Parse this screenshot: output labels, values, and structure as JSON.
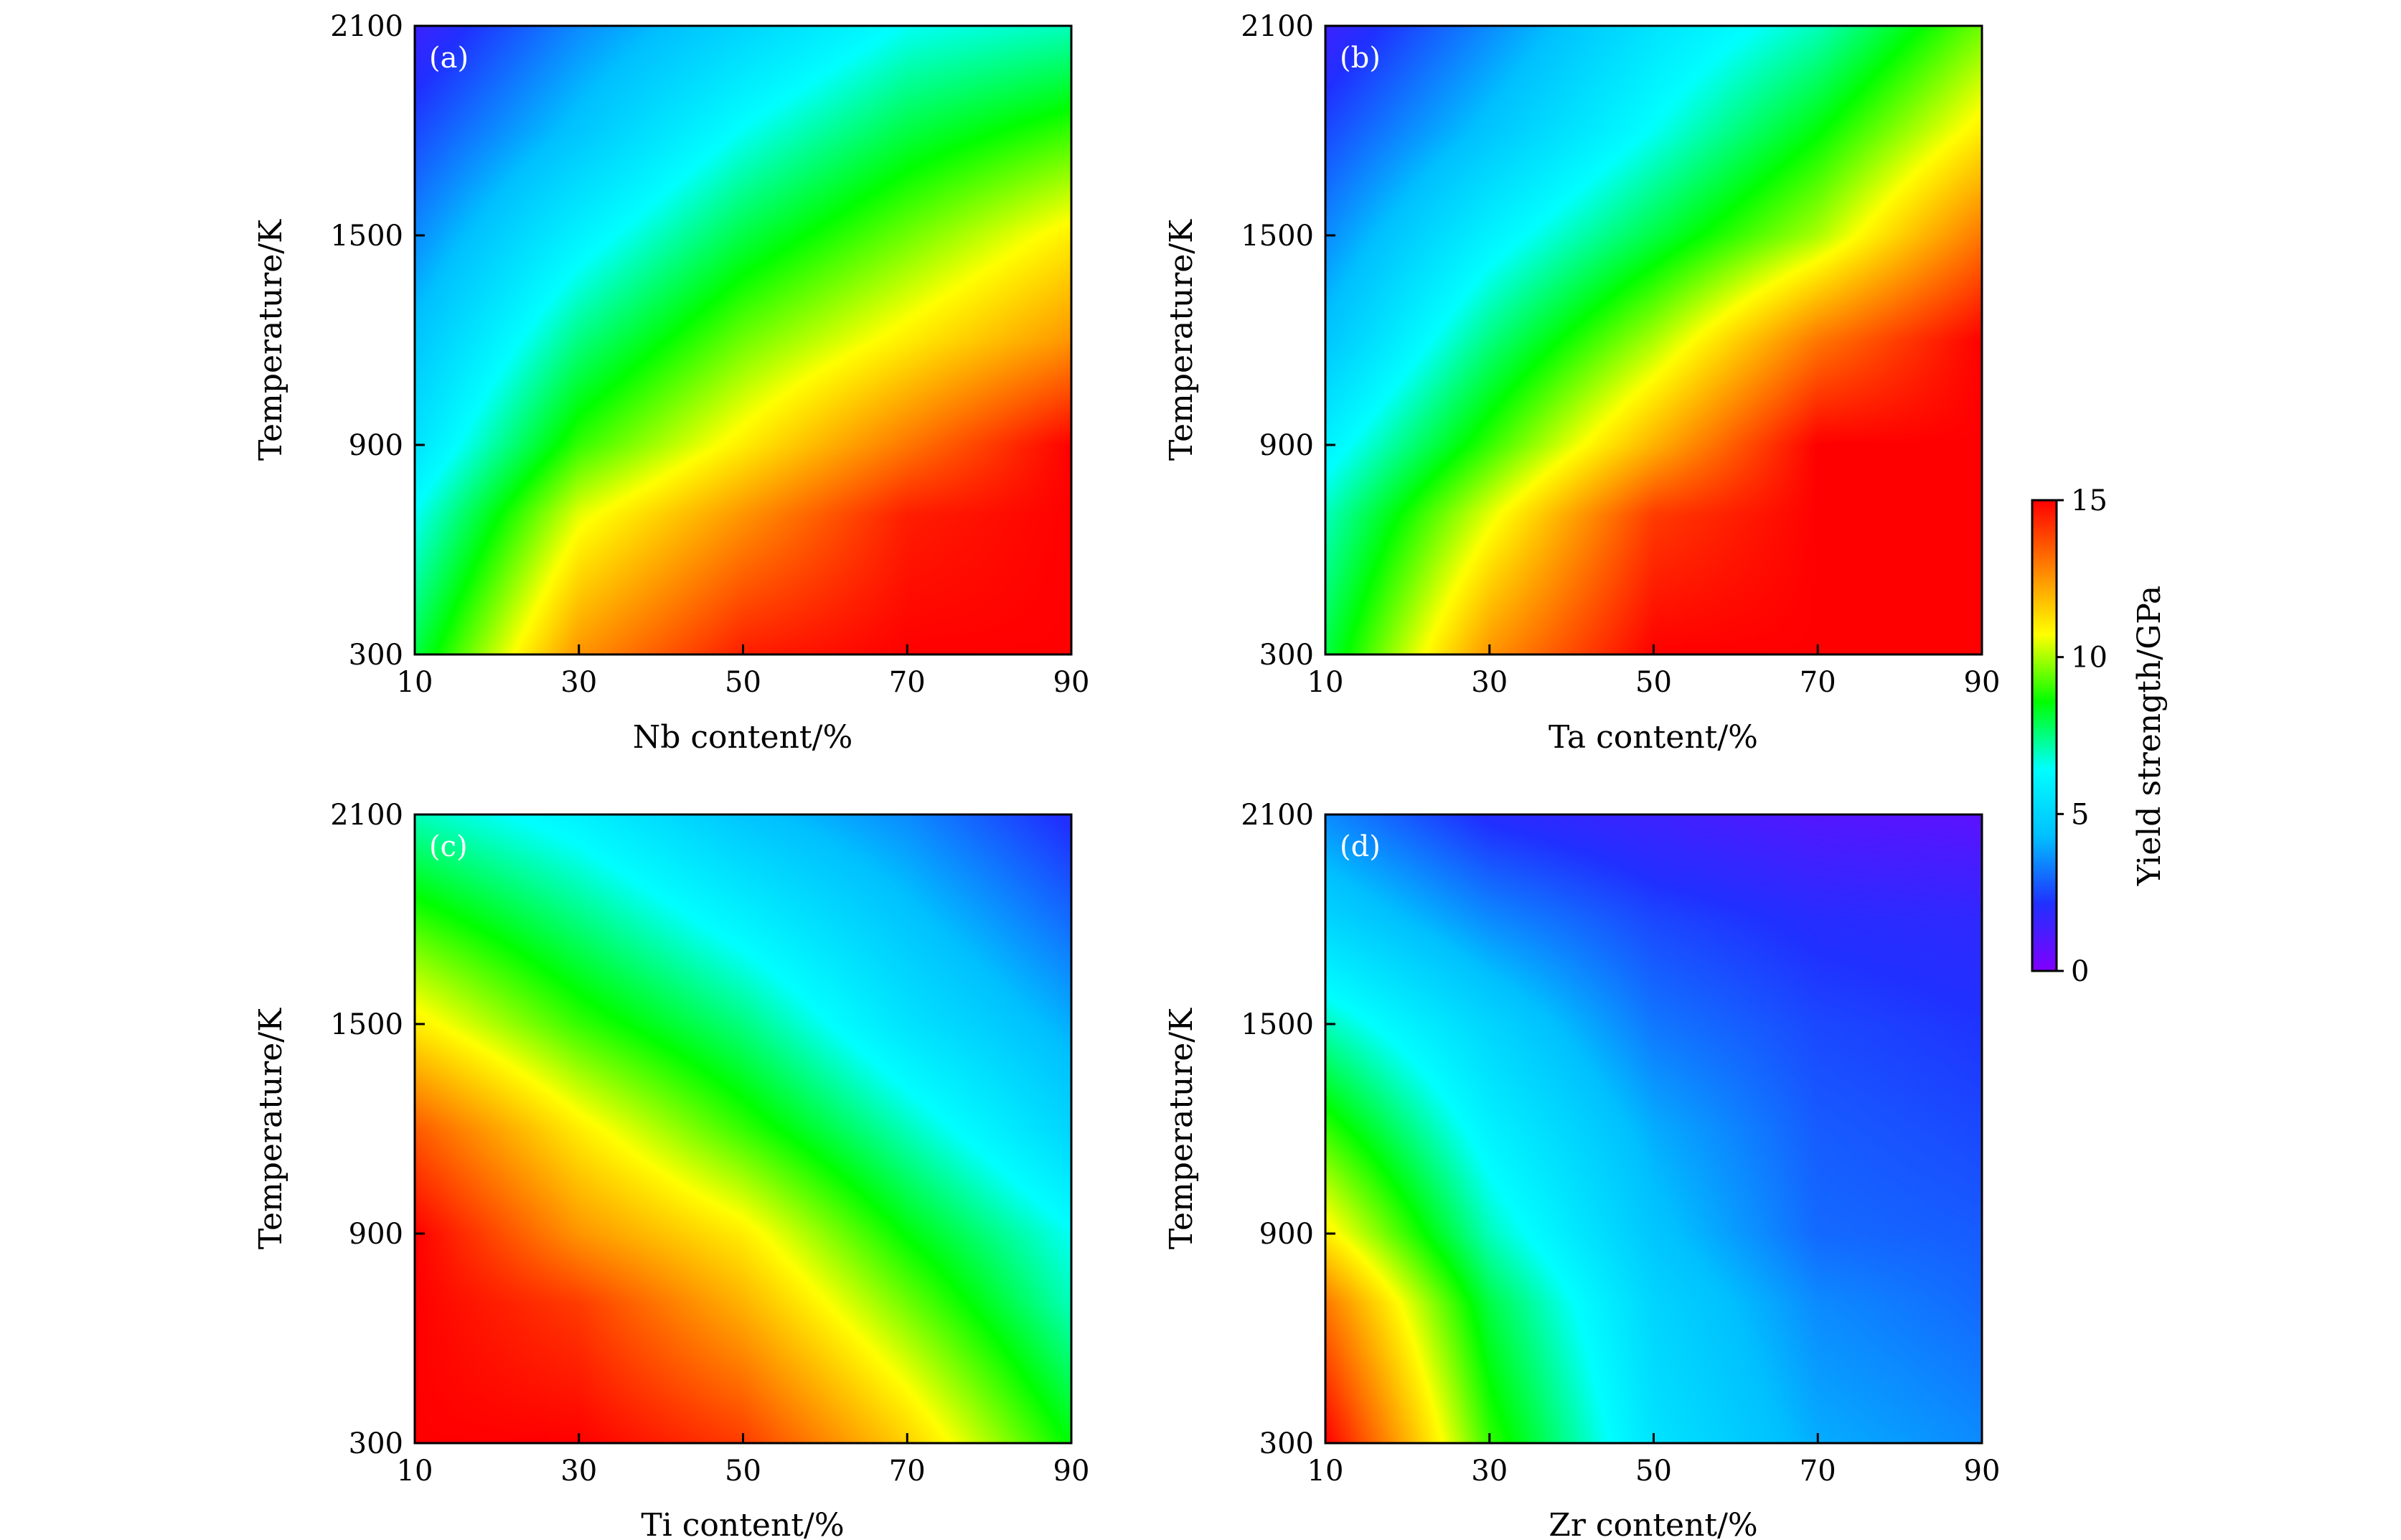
{
  "chart_data": [
    {
      "id": "a",
      "type": "heatmap",
      "panel_label": "(a)",
      "xlabel": "Nb content/%",
      "ylabel": "Temperature/K",
      "xlim": [
        10,
        90
      ],
      "ylim": [
        300,
        2100
      ],
      "xticks": [
        "10",
        "30",
        "50",
        "70",
        "90"
      ],
      "yticks": [
        "300",
        "900",
        "1500",
        "2100"
      ],
      "x": [
        10,
        30,
        50,
        70,
        90
      ],
      "y": [
        300,
        700,
        900,
        1200,
        1500,
        1800,
        2100
      ],
      "z": [
        [
          8.0,
          12.5,
          14.5,
          15.0,
          15.0
        ],
        [
          6.5,
          10.5,
          12.5,
          14.5,
          15.0
        ],
        [
          5.5,
          9.0,
          11.0,
          13.0,
          15.0
        ],
        [
          4.5,
          7.5,
          9.5,
          11.0,
          12.5
        ],
        [
          3.5,
          6.0,
          8.0,
          9.5,
          11.0
        ],
        [
          2.5,
          4.5,
          6.5,
          8.0,
          9.0
        ],
        [
          1.5,
          3.5,
          5.0,
          6.5,
          7.0
        ]
      ]
    },
    {
      "id": "b",
      "type": "heatmap",
      "panel_label": "(b)",
      "xlabel": "Ta content/%",
      "ylabel": "Temperature/K",
      "xlim": [
        10,
        90
      ],
      "ylim": [
        300,
        2100
      ],
      "xticks": [
        "10",
        "30",
        "50",
        "70",
        "90"
      ],
      "yticks": [
        "300",
        "900",
        "1500",
        "2100"
      ],
      "x": [
        10,
        30,
        50,
        70,
        90
      ],
      "y": [
        300,
        700,
        900,
        1200,
        1500,
        1800,
        2100
      ],
      "z": [
        [
          8.0,
          12.5,
          15.0,
          15.0,
          15.0
        ],
        [
          7.0,
          10.5,
          14.0,
          15.0,
          15.0
        ],
        [
          6.0,
          9.0,
          12.0,
          15.0,
          15.0
        ],
        [
          4.5,
          7.5,
          10.0,
          13.0,
          15.0
        ],
        [
          3.5,
          6.0,
          8.0,
          10.0,
          13.0
        ],
        [
          2.5,
          4.5,
          6.5,
          8.5,
          11.0
        ],
        [
          1.5,
          3.5,
          5.5,
          7.0,
          9.5
        ]
      ]
    },
    {
      "id": "c",
      "type": "heatmap",
      "panel_label": "(c)",
      "xlabel": "Ti content/%",
      "ylabel": "Temperature/K",
      "xlim": [
        10,
        90
      ],
      "ylim": [
        300,
        2100
      ],
      "xticks": [
        "10",
        "30",
        "50",
        "70",
        "90"
      ],
      "yticks": [
        "300",
        "900",
        "1500",
        "2100"
      ],
      "x": [
        10,
        30,
        50,
        70,
        90
      ],
      "y": [
        300,
        700,
        900,
        1200,
        1500,
        1800,
        2100
      ],
      "z": [
        [
          15.0,
          15.0,
          14.0,
          11.5,
          8.5
        ],
        [
          15.0,
          14.0,
          12.0,
          9.5,
          7.0
        ],
        [
          15.0,
          12.5,
          11.0,
          8.5,
          6.5
        ],
        [
          13.5,
          11.0,
          9.0,
          7.0,
          5.0
        ],
        [
          11.0,
          9.0,
          7.5,
          5.5,
          4.0
        ],
        [
          9.0,
          7.5,
          6.0,
          4.5,
          3.0
        ],
        [
          7.0,
          6.0,
          4.5,
          3.5,
          2.0
        ]
      ]
    },
    {
      "id": "d",
      "type": "heatmap",
      "panel_label": "(d)",
      "xlabel": "Zr content/%",
      "ylabel": "Temperature/K",
      "xlim": [
        10,
        90
      ],
      "ylim": [
        300,
        2100
      ],
      "xticks": [
        "10",
        "30",
        "50",
        "70",
        "90"
      ],
      "yticks": [
        "300",
        "900",
        "1500",
        "2100"
      ],
      "x": [
        10,
        30,
        50,
        70,
        90
      ],
      "y": [
        300,
        700,
        900,
        1200,
        1500,
        1800,
        2100
      ],
      "z": [
        [
          15.0,
          9.0,
          5.5,
          4.0,
          3.5
        ],
        [
          13.0,
          8.0,
          5.0,
          3.5,
          3.0
        ],
        [
          11.0,
          7.0,
          4.5,
          3.0,
          2.8
        ],
        [
          9.0,
          6.0,
          4.0,
          2.8,
          2.5
        ],
        [
          7.0,
          5.0,
          3.2,
          2.5,
          2.2
        ],
        [
          5.0,
          3.5,
          2.5,
          2.0,
          1.8
        ],
        [
          3.5,
          2.0,
          1.5,
          1.0,
          0.8
        ]
      ]
    }
  ],
  "colorbar": {
    "label": "Yield strength/GPa",
    "min": 0,
    "max": 15,
    "ticks": [
      "0",
      "5",
      "10",
      "15"
    ],
    "colormap": [
      "#8000ff",
      "#2030ff",
      "#00c0ff",
      "#00ffff",
      "#00ff00",
      "#ffff00",
      "#ff8000",
      "#ff0000"
    ]
  }
}
